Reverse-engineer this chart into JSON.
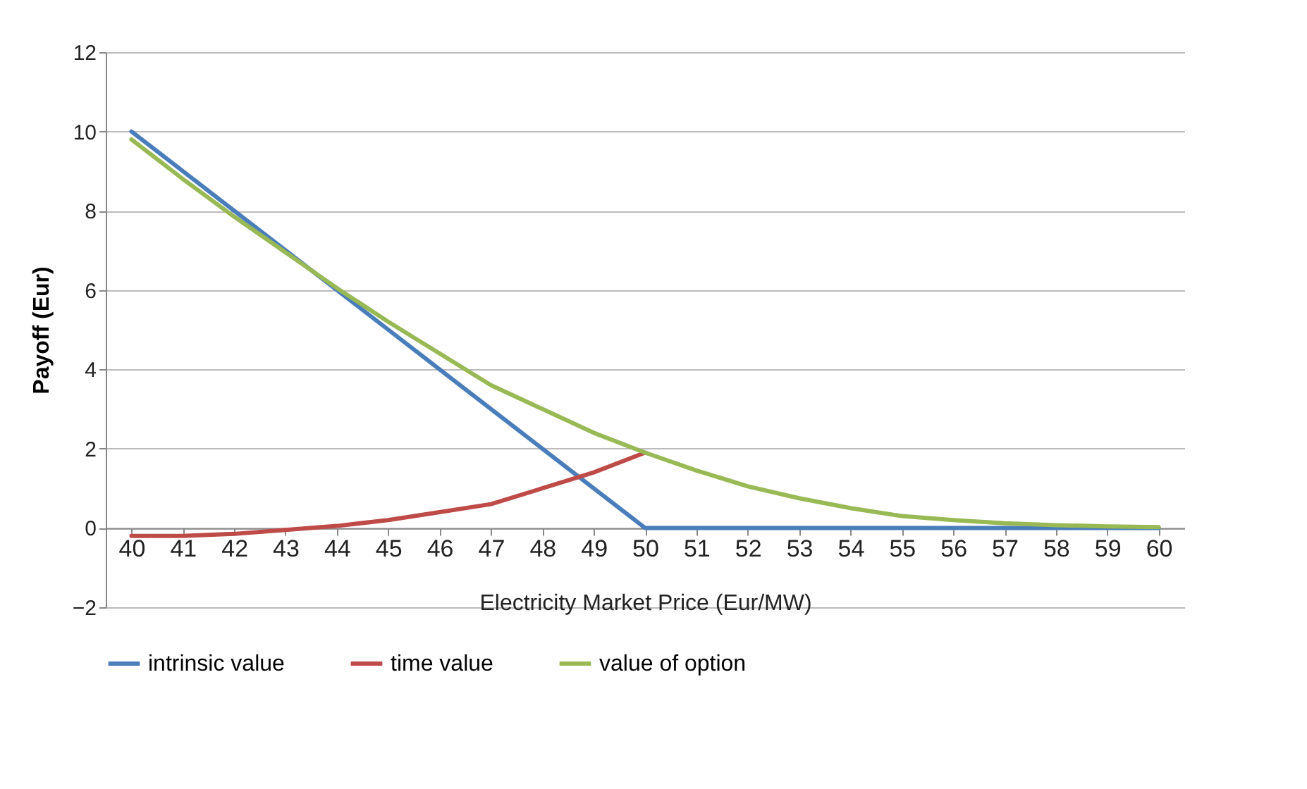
{
  "chart_data": {
    "type": "line",
    "xlabel": "Electricity Market Price (Eur/MW)",
    "ylabel": "Payoff (Eur)",
    "categories": [
      "40",
      "41",
      "42",
      "43",
      "44",
      "45",
      "46",
      "47",
      "48",
      "49",
      "50",
      "51",
      "52",
      "53",
      "54",
      "55",
      "56",
      "57",
      "58",
      "59",
      "60"
    ],
    "series": [
      {
        "name": "intrinsic value",
        "color": "#4a7ebb",
        "values": [
          10,
          9,
          8,
          7,
          6,
          5,
          4,
          3,
          2,
          1,
          0,
          0,
          0,
          0,
          0,
          0,
          0,
          0,
          0,
          0,
          0
        ]
      },
      {
        "name": "time value",
        "color": "#be4b48",
        "values": [
          -0.2,
          -0.2,
          -0.15,
          -0.05,
          0.05,
          0.2,
          0.4,
          0.6,
          1,
          1.4,
          1.9,
          null,
          null,
          null,
          null,
          null,
          null,
          null,
          null,
          null,
          null
        ]
      },
      {
        "name": "value of option",
        "color": "#98b954",
        "values": [
          9.8,
          8.8,
          7.85,
          6.95,
          6.05,
          5.2,
          4.4,
          3.6,
          3,
          2.4,
          1.9,
          1.45,
          1.05,
          0.75,
          0.5,
          0.3,
          0.2,
          0.12,
          0.07,
          0.04,
          0.02
        ]
      }
    ],
    "ylim": [
      -2,
      12
    ],
    "yticks": [
      -2,
      0,
      2,
      4,
      6,
      8,
      10,
      12
    ],
    "grid": "y",
    "legend": "bottom",
    "line_style": "solid"
  }
}
